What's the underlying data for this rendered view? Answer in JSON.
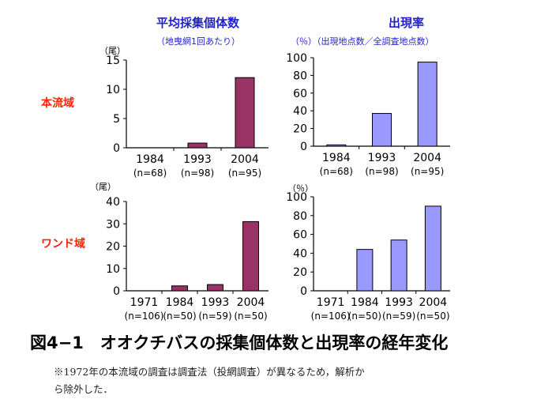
{
  "headers": {
    "left_title": "平均採集個体数",
    "left_sub": "（地曳網1回あたり）",
    "right_title": "出現率",
    "right_sub": "（％）（出現地点数／全調査地点数）"
  },
  "row_labels": {
    "top": "本流域",
    "bottom": "ワンド域"
  },
  "units": {
    "tl": "（尾）",
    "bl": "（尾）",
    "br": "（％）"
  },
  "figure_title": "図4−1　オオクチバスの採集個体数と出現率の経年変化",
  "note": {
    "line1": "※1972年の本流域の調査は調査法（投網調査）が異なるため，解析か",
    "line2": "ら除外した．"
  },
  "colors": {
    "maroon": "#993366",
    "lavender": "#9999ff",
    "title_blue": "#2222cc",
    "row_red": "#ff2200"
  },
  "chart_data": [
    {
      "id": "tl",
      "type": "bar",
      "color": "#993366",
      "categories": [
        "1984",
        "1993",
        "2004"
      ],
      "sublabels": [
        "(n=68)",
        "(n=98)",
        "(n=95)"
      ],
      "values": [
        0,
        0.8,
        12
      ],
      "ylim": [
        0,
        15
      ],
      "yticks": [
        0,
        5,
        10,
        15
      ]
    },
    {
      "id": "tr",
      "type": "bar",
      "color": "#9999ff",
      "categories": [
        "1984",
        "1993",
        "2004"
      ],
      "sublabels": [
        "(n=68)",
        "(n=98)",
        "(n=95)"
      ],
      "values": [
        1.5,
        37,
        95
      ],
      "ylim": [
        0,
        100
      ],
      "yticks": [
        0,
        20,
        40,
        60,
        80,
        100
      ]
    },
    {
      "id": "bl",
      "type": "bar",
      "color": "#993366",
      "categories": [
        "1971",
        "1984",
        "1993",
        "2004"
      ],
      "sublabels": [
        "(n=106)",
        "(n=50)",
        "(n=59)",
        "(n=50)"
      ],
      "values": [
        0,
        2.2,
        2.8,
        31
      ],
      "ylim": [
        0,
        40
      ],
      "yticks": [
        0,
        10,
        20,
        30,
        40
      ]
    },
    {
      "id": "br",
      "type": "bar",
      "color": "#9999ff",
      "categories": [
        "1971",
        "1984",
        "1993",
        "2004"
      ],
      "sublabels": [
        "(n=106)",
        "(n=50)",
        "(n=59)",
        "(n=50)"
      ],
      "values": [
        0,
        44,
        54,
        90
      ],
      "ylim": [
        0,
        100
      ],
      "yticks": [
        0,
        20,
        40,
        60,
        80,
        100
      ]
    }
  ]
}
